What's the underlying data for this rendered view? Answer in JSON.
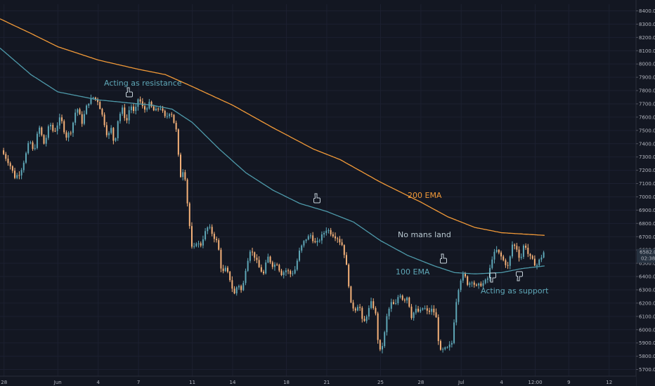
{
  "colors": {
    "background": "#131722",
    "up": "#5fa8b8",
    "down": "#f7b37a",
    "ema200": "#f29a38",
    "ema100": "#4e9aaa",
    "grid": "#1c2030",
    "axis_text": "#b2b5be",
    "resistance_text": "#5fa8b8",
    "ema200_text": "#f29a38",
    "nomans_text": "#b8c8d0",
    "ema100_text": "#5fa8b8",
    "support_text": "#5fa8b8",
    "price_tag": "#26313f",
    "price_tag_text": "#d1d4dc"
  },
  "chart_data": {
    "type": "candlestick",
    "ylim": [
      5650,
      8450
    ],
    "y_ticks": [
      "8400.0",
      "8300.0",
      "8200.0",
      "8100.0",
      "8000.0",
      "7900.0",
      "7800.0",
      "7700.0",
      "7600.0",
      "7500.0",
      "7400.0",
      "7300.0",
      "7200.0",
      "7100.0",
      "7000.0",
      "6900.0",
      "6800.0",
      "6700.0",
      "6600.0",
      "6500.0",
      "6400.0",
      "6300.0",
      "6200.0",
      "6100.0",
      "6000.0",
      "5900.0",
      "5800.0",
      "5700.0"
    ],
    "x_ticks": [
      {
        "label": "28",
        "day": -4
      },
      {
        "label": "Jun",
        "day": 0
      },
      {
        "label": "4",
        "day": 3
      },
      {
        "label": "7",
        "day": 6
      },
      {
        "label": "11",
        "day": 10
      },
      {
        "label": "14",
        "day": 13
      },
      {
        "label": "18",
        "day": 17
      },
      {
        "label": "21",
        "day": 20
      },
      {
        "label": "25",
        "day": 24
      },
      {
        "label": "28",
        "day": 27
      },
      {
        "label": "Jul",
        "day": 30
      },
      {
        "label": "4",
        "day": 33
      },
      {
        "label": "12:00",
        "day": 35.5
      },
      {
        "label": "9",
        "day": 38
      },
      {
        "label": "12",
        "day": 41
      }
    ],
    "x_range_days": [
      -4.3,
      43
    ],
    "price_anchors": [
      [
        -4.2,
        7350
      ],
      [
        -3.6,
        7250
      ],
      [
        -3.2,
        7150
      ],
      [
        -2.8,
        7180
      ],
      [
        -2.4,
        7310
      ],
      [
        -2.1,
        7430
      ],
      [
        -1.8,
        7330
      ],
      [
        -1.4,
        7530
      ],
      [
        -1.0,
        7390
      ],
      [
        -0.6,
        7560
      ],
      [
        -0.3,
        7480
      ],
      [
        0.2,
        7600
      ],
      [
        0.6,
        7450
      ],
      [
        1.0,
        7500
      ],
      [
        1.4,
        7680
      ],
      [
        1.8,
        7560
      ],
      [
        2.2,
        7700
      ],
      [
        2.6,
        7750
      ],
      [
        3.0,
        7720
      ],
      [
        3.4,
        7580
      ],
      [
        3.7,
        7450
      ],
      [
        4.0,
        7520
      ],
      [
        4.2,
        7380
      ],
      [
        4.5,
        7600
      ],
      [
        4.8,
        7660
      ],
      [
        5.1,
        7560
      ],
      [
        5.4,
        7700
      ],
      [
        5.7,
        7620
      ],
      [
        6.0,
        7750
      ],
      [
        6.4,
        7650
      ],
      [
        6.8,
        7700
      ],
      [
        7.2,
        7640
      ],
      [
        7.6,
        7680
      ],
      [
        8.0,
        7590
      ],
      [
        8.4,
        7650
      ],
      [
        8.8,
        7500
      ],
      [
        9.1,
        7150
      ],
      [
        9.4,
        7220
      ],
      [
        9.7,
        6880
      ],
      [
        10.0,
        6580
      ],
      [
        10.3,
        6660
      ],
      [
        10.6,
        6630
      ],
      [
        10.9,
        6720
      ],
      [
        11.2,
        6780
      ],
      [
        11.6,
        6700
      ],
      [
        11.9,
        6650
      ],
      [
        12.2,
        6420
      ],
      [
        12.5,
        6460
      ],
      [
        12.8,
        6380
      ],
      [
        13.1,
        6260
      ],
      [
        13.4,
        6350
      ],
      [
        13.7,
        6280
      ],
      [
        14.0,
        6480
      ],
      [
        14.3,
        6600
      ],
      [
        14.6,
        6560
      ],
      [
        15.0,
        6460
      ],
      [
        15.3,
        6420
      ],
      [
        15.6,
        6550
      ],
      [
        16.0,
        6480
      ],
      [
        16.3,
        6500
      ],
      [
        16.6,
        6420
      ],
      [
        17.0,
        6450
      ],
      [
        17.3,
        6420
      ],
      [
        17.6,
        6440
      ],
      [
        18.0,
        6600
      ],
      [
        18.4,
        6680
      ],
      [
        18.8,
        6710
      ],
      [
        19.2,
        6640
      ],
      [
        19.6,
        6700
      ],
      [
        20.0,
        6760
      ],
      [
        20.4,
        6720
      ],
      [
        20.8,
        6690
      ],
      [
        21.2,
        6630
      ],
      [
        21.5,
        6460
      ],
      [
        21.8,
        6190
      ],
      [
        22.1,
        6150
      ],
      [
        22.4,
        6200
      ],
      [
        22.7,
        6030
      ],
      [
        23.0,
        6120
      ],
      [
        23.3,
        6200
      ],
      [
        23.6,
        6150
      ],
      [
        23.9,
        5820
      ],
      [
        24.2,
        5900
      ],
      [
        24.5,
        6120
      ],
      [
        24.8,
        6200
      ],
      [
        25.1,
        6180
      ],
      [
        25.4,
        6280
      ],
      [
        25.7,
        6220
      ],
      [
        26.0,
        6250
      ],
      [
        26.3,
        6100
      ],
      [
        26.6,
        6150
      ],
      [
        26.9,
        6130
      ],
      [
        27.2,
        6170
      ],
      [
        27.5,
        6130
      ],
      [
        27.8,
        6150
      ],
      [
        28.1,
        6120
      ],
      [
        28.4,
        5830
      ],
      [
        28.7,
        5850
      ],
      [
        29.0,
        5860
      ],
      [
        29.3,
        5900
      ],
      [
        29.6,
        6200
      ],
      [
        29.9,
        6370
      ],
      [
        30.2,
        6420
      ],
      [
        30.5,
        6340
      ],
      [
        30.8,
        6370
      ],
      [
        31.1,
        6320
      ],
      [
        31.4,
        6340
      ],
      [
        31.7,
        6350
      ],
      [
        32.0,
        6390
      ],
      [
        32.3,
        6540
      ],
      [
        32.6,
        6600
      ],
      [
        32.9,
        6560
      ],
      [
        33.2,
        6510
      ],
      [
        33.5,
        6470
      ],
      [
        33.8,
        6640
      ],
      [
        34.1,
        6620
      ],
      [
        34.4,
        6520
      ],
      [
        34.7,
        6660
      ],
      [
        35.0,
        6560
      ],
      [
        35.3,
        6520
      ],
      [
        35.6,
        6480
      ],
      [
        35.9,
        6540
      ],
      [
        36.2,
        6582
      ]
    ],
    "ema200_anchors": [
      [
        -4.3,
        8340
      ],
      [
        -2,
        8230
      ],
      [
        0,
        8130
      ],
      [
        3,
        8030
      ],
      [
        6,
        7960
      ],
      [
        8,
        7920
      ],
      [
        10,
        7830
      ],
      [
        13,
        7690
      ],
      [
        16,
        7520
      ],
      [
        19,
        7360
      ],
      [
        21,
        7280
      ],
      [
        24,
        7110
      ],
      [
        27,
        6960
      ],
      [
        29,
        6850
      ],
      [
        31,
        6770
      ],
      [
        33,
        6730
      ],
      [
        36.2,
        6710
      ]
    ],
    "ema100_anchors": [
      [
        -4.3,
        8120
      ],
      [
        -2,
        7920
      ],
      [
        0,
        7790
      ],
      [
        3,
        7730
      ],
      [
        5,
        7710
      ],
      [
        7,
        7690
      ],
      [
        8.5,
        7660
      ],
      [
        10,
        7560
      ],
      [
        12,
        7360
      ],
      [
        14,
        7180
      ],
      [
        16,
        7050
      ],
      [
        18,
        6950
      ],
      [
        20,
        6890
      ],
      [
        22,
        6810
      ],
      [
        24,
        6670
      ],
      [
        26,
        6560
      ],
      [
        28,
        6480
      ],
      [
        29.5,
        6430
      ],
      [
        31,
        6420
      ],
      [
        33,
        6430
      ],
      [
        34.5,
        6460
      ],
      [
        36.2,
        6480
      ]
    ],
    "last_price": "6582.0",
    "countdown": "02:38",
    "annotations": {
      "resistance": "Acting as resistance",
      "ema200": "200 EMA",
      "no_mans_land": "No mans land",
      "ema100": "100 EMA",
      "support": "Acting as support"
    }
  }
}
